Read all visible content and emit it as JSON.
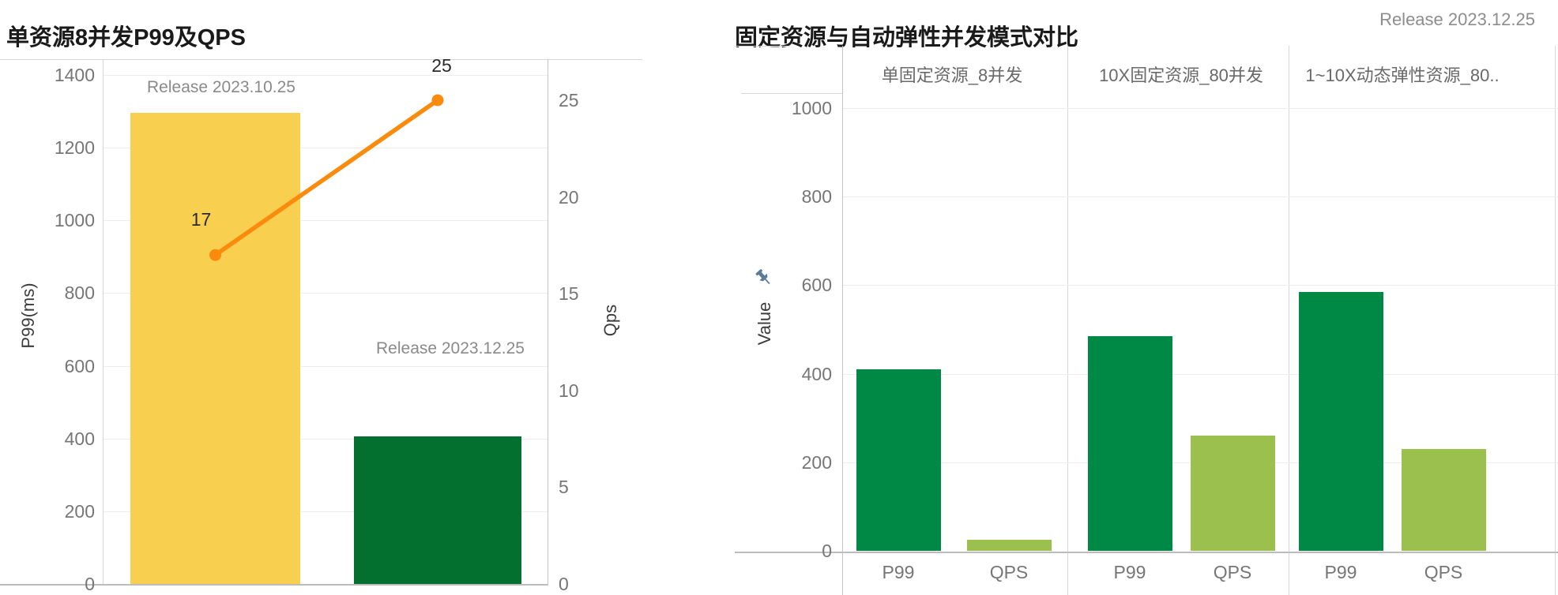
{
  "chart_data": [
    {
      "type": "bar+line",
      "title": "单资源8并发P99及QPS",
      "y_left": {
        "label": "P99(ms)",
        "ticks": [
          0,
          200,
          400,
          600,
          800,
          1000,
          1200,
          1400
        ],
        "range": [
          0,
          1400
        ],
        "grid": true
      },
      "y_right": {
        "label": "Qps",
        "ticks": [
          0,
          5,
          10,
          15,
          20,
          25
        ],
        "range": [
          0,
          25
        ]
      },
      "categories": [
        "Release 2023.10.25",
        "Release 2023.12.25"
      ],
      "series": [
        {
          "name": "P99(ms)",
          "type": "bar",
          "values": [
            1295,
            405
          ],
          "colors": [
            "#F9CF4F",
            "#04702F"
          ]
        },
        {
          "name": "Qps",
          "type": "line",
          "values": [
            17,
            25
          ],
          "color": "#FA8B0C"
        }
      ],
      "annotations": [
        "Release 2023.10.25",
        "Release 2023.12.25"
      ],
      "line_point_labels": [
        "17",
        "25"
      ],
      "legend": "none"
    },
    {
      "type": "grouped-bar",
      "title": "固定资源与自动弹性并发模式对比",
      "subtitle": "Release 2023.12.25",
      "y_axis": {
        "label": "Value",
        "ticks": [
          0,
          200,
          400,
          600,
          800,
          1000
        ],
        "range": [
          0,
          1000
        ],
        "grid": true
      },
      "x_labels": [
        "P99",
        "QPS"
      ],
      "groups": [
        {
          "label": "单固定资源_8并发",
          "P99": 410,
          "QPS": 25
        },
        {
          "label": "10X固定资源_80并发",
          "P99": 485,
          "QPS": 260
        },
        {
          "label": "1~10X动态弹性资源_80..",
          "P99": 585,
          "QPS": 230
        }
      ],
      "series_colors": {
        "P99": "#008845",
        "QPS": "#9CC04E"
      },
      "icons": {
        "pin_icon_color": "#5b7b99"
      },
      "legend": "none"
    }
  ]
}
